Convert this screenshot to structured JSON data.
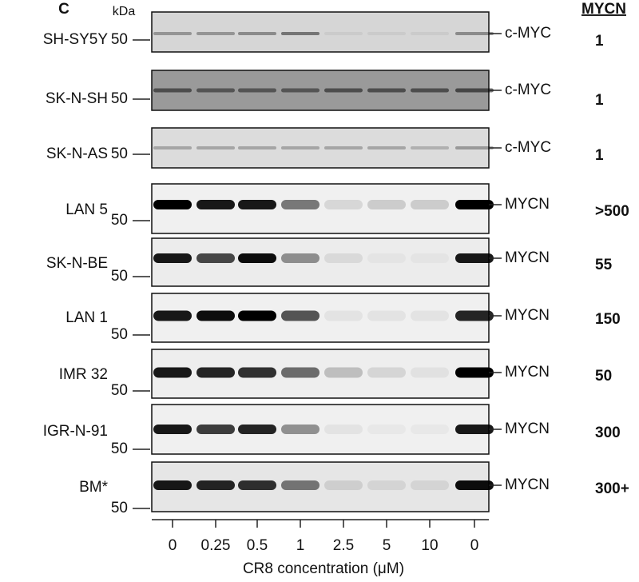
{
  "panel_label": "C",
  "unit": "kDa",
  "header": "MYCN",
  "rows": [
    {
      "cell_line": "SH-SY5Y",
      "marker": "50",
      "protein": "c-MYC",
      "mycn": "1"
    },
    {
      "cell_line": "SK-N-SH",
      "marker": "50",
      "protein": "c-MYC",
      "mycn": "1"
    },
    {
      "cell_line": "SK-N-AS",
      "marker": "50",
      "protein": "c-MYC",
      "mycn": "1"
    },
    {
      "cell_line": "LAN 5",
      "marker": "50",
      "protein": "MYCN",
      "mycn": ">500"
    },
    {
      "cell_line": "SK-N-BE",
      "marker": "50",
      "protein": "MYCN",
      "mycn": "55"
    },
    {
      "cell_line": "LAN 1",
      "marker": "50",
      "protein": "MYCN",
      "mycn": "150"
    },
    {
      "cell_line": "IMR 32",
      "marker": "50",
      "protein": "MYCN",
      "mycn": "50"
    },
    {
      "cell_line": "IGR-N-91",
      "marker": "50",
      "protein": "MYCN",
      "mycn": "300"
    },
    {
      "cell_line": "BM*",
      "marker": "50",
      "protein": "MYCN",
      "mycn": "300+"
    }
  ],
  "lanes": [
    "0",
    "0.25",
    "0.5",
    "1",
    "2.5",
    "5",
    "10",
    "0"
  ],
  "x_axis_label": "CR8 concentration (μM)"
}
